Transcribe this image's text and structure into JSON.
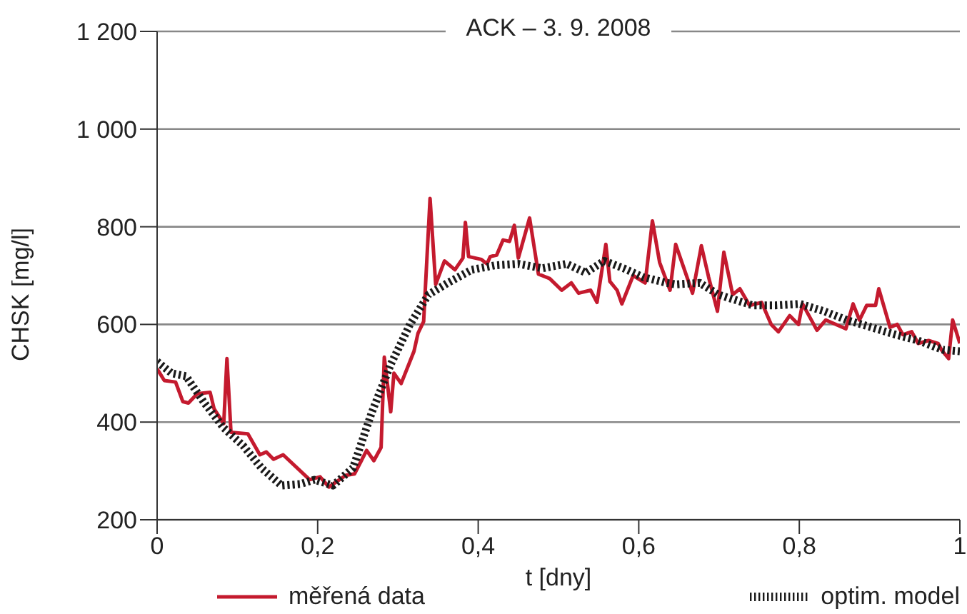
{
  "chart_data": {
    "type": "line",
    "title": "ACK – 3. 9. 2008",
    "xlabel": "t [dny]",
    "ylabel": "CHSK [mg/l]",
    "xlim": [
      0,
      1
    ],
    "xticks": [
      0,
      {
        "value": 0.2,
        "label": "0,2"
      },
      {
        "value": 0.4,
        "label": "0,4"
      },
      {
        "value": 0.6,
        "label": "0,6"
      },
      {
        "value": 0.8,
        "label": "0,8"
      },
      1
    ],
    "ylim": [
      200,
      1200
    ],
    "yticks": [
      200,
      400,
      600,
      800,
      {
        "value": 1000,
        "label": "1 000"
      },
      {
        "value": 1200,
        "label": "1 200"
      }
    ],
    "grid": "y",
    "legend": "bottom",
    "marker": "none",
    "series": [
      {
        "name": "měřená data",
        "color": "#c41a2e",
        "line_style": "solid",
        "x": [
          0,
          0.009,
          0.023,
          0.032,
          0.039,
          0.05,
          0.066,
          0.071,
          0.083,
          0.087,
          0.092,
          0.113,
          0.128,
          0.136,
          0.145,
          0.157,
          0.19,
          0.203,
          0.214,
          0.235,
          0.246,
          0.261,
          0.27,
          0.279,
          0.283,
          0.291,
          0.295,
          0.304,
          0.32,
          0.325,
          0.332,
          0.34,
          0.347,
          0.358,
          0.371,
          0.381,
          0.384,
          0.388,
          0.404,
          0.411,
          0.415,
          0.423,
          0.431,
          0.439,
          0.445,
          0.45,
          0.464,
          0.475,
          0.489,
          0.504,
          0.516,
          0.525,
          0.54,
          0.548,
          0.559,
          0.564,
          0.573,
          0.579,
          0.593,
          0.608,
          0.617,
          0.626,
          0.639,
          0.646,
          0.655,
          0.667,
          0.678,
          0.687,
          0.698,
          0.706,
          0.717,
          0.726,
          0.738,
          0.753,
          0.765,
          0.774,
          0.788,
          0.799,
          0.804,
          0.822,
          0.833,
          0.858,
          0.867,
          0.875,
          0.884,
          0.895,
          0.899,
          0.913,
          0.922,
          0.929,
          0.94,
          0.948,
          0.961,
          0.973,
          0.977,
          0.986,
          0.991,
          1
        ],
        "values": [
          509,
          485,
          482,
          442,
          439,
          458,
          461,
          427,
          397,
          530,
          379,
          376,
          333,
          339,
          324,
          333,
          282,
          288,
          267,
          291,
          294,
          342,
          321,
          348,
          533,
          421,
          500,
          479,
          545,
          582,
          606,
          858,
          682,
          730,
          712,
          736,
          809,
          739,
          733,
          724,
          739,
          742,
          773,
          770,
          803,
          736,
          818,
          703,
          694,
          670,
          685,
          664,
          670,
          645,
          764,
          688,
          670,
          642,
          700,
          685,
          812,
          727,
          670,
          764,
          721,
          664,
          761,
          697,
          627,
          748,
          661,
          673,
          639,
          645,
          600,
          585,
          618,
          600,
          642,
          588,
          609,
          591,
          642,
          609,
          639,
          639,
          673,
          594,
          600,
          579,
          585,
          561,
          567,
          561,
          548,
          530,
          609,
          561
        ]
      },
      {
        "name": "optim. model",
        "color": "#1a1a1a",
        "line_style": "dotted",
        "x": [
          0,
          0.018,
          0.036,
          0.059,
          0.083,
          0.107,
          0.13,
          0.155,
          0.178,
          0.196,
          0.219,
          0.244,
          0.267,
          0.291,
          0.315,
          0.332,
          0.338,
          0.362,
          0.392,
          0.421,
          0.45,
          0.48,
          0.51,
          0.534,
          0.557,
          0.581,
          0.605,
          0.635,
          0.646,
          0.676,
          0.699,
          0.742,
          0.77,
          0.801,
          0.831,
          0.859,
          0.89,
          0.92,
          0.948,
          0.979,
          1
        ],
        "values": [
          524,
          500,
          494,
          439,
          388,
          352,
          306,
          270,
          273,
          282,
          270,
          306,
          418,
          518,
          600,
          645,
          661,
          685,
          712,
          721,
          724,
          715,
          724,
          706,
          730,
          715,
          697,
          685,
          682,
          685,
          661,
          639,
          639,
          642,
          627,
          609,
          594,
          579,
          567,
          548,
          545
        ]
      }
    ]
  }
}
